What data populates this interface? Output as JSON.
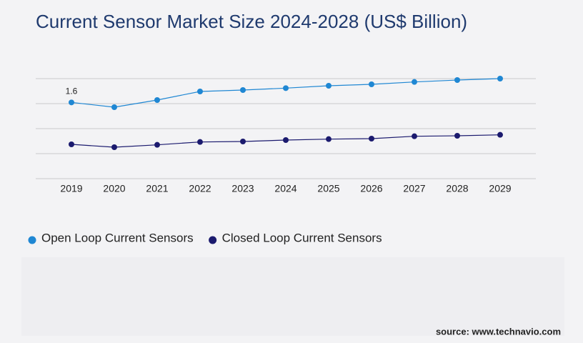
{
  "chart_data": {
    "type": "line",
    "title": "Current Sensor Market Size 2024-2028 (US$ Billion)",
    "categories": [
      "2019",
      "2020",
      "2021",
      "2022",
      "2023",
      "2024",
      "2025",
      "2026",
      "2027",
      "2028",
      "2029"
    ],
    "series": [
      {
        "name": "Open Loop Current Sensors",
        "color": "#1f87d3",
        "values": [
          1.6,
          1.5,
          1.65,
          1.83,
          1.86,
          1.9,
          1.95,
          1.98,
          2.03,
          2.07,
          2.1
        ],
        "value_labels": [
          "1.6",
          null,
          null,
          null,
          null,
          null,
          null,
          null,
          null,
          null,
          null
        ]
      },
      {
        "name": "Closed Loop Current Sensors",
        "color": "#1b1a6e",
        "values": [
          0.72,
          0.66,
          0.71,
          0.77,
          0.78,
          0.81,
          0.83,
          0.84,
          0.89,
          0.9,
          0.92
        ]
      }
    ],
    "ylim": [
      0,
      2.1
    ],
    "grid": true,
    "legend": "bottom",
    "source": "source: www.technavio.com"
  }
}
